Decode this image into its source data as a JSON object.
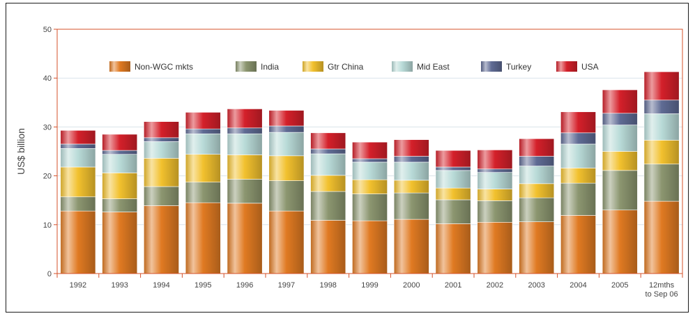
{
  "chart_data": {
    "type": "bar",
    "stacked": true,
    "title": "",
    "xlabel": "",
    "ylabel": "US$ billion",
    "ylim": [
      0,
      50
    ],
    "yticks": [
      0,
      10,
      20,
      30,
      40,
      50
    ],
    "grid": true,
    "legend_position": "top",
    "categories": [
      "1992",
      "1993",
      "1994",
      "1995",
      "1996",
      "1997",
      "1998",
      "1999",
      "2000",
      "2001",
      "2002",
      "2003",
      "2004",
      "2005",
      "12mths to Sep 06"
    ],
    "series": [
      {
        "name": "Non-WGC mkts",
        "color": "#e07a22",
        "values": [
          12.8,
          12.6,
          13.9,
          14.5,
          14.4,
          12.8,
          10.9,
          10.8,
          11.1,
          10.2,
          10.5,
          10.6,
          11.9,
          13.0,
          14.8
        ]
      },
      {
        "name": "India",
        "color": "#8c9670",
        "values": [
          2.9,
          2.7,
          3.9,
          4.2,
          4.9,
          6.2,
          5.9,
          5.5,
          5.4,
          4.9,
          4.4,
          4.9,
          6.6,
          8.1,
          7.6
        ]
      },
      {
        "name": "Gtr China",
        "color": "#f2c12e",
        "values": [
          6.1,
          5.3,
          5.8,
          5.7,
          5.0,
          5.1,
          3.3,
          2.9,
          2.6,
          2.4,
          2.4,
          2.9,
          3.1,
          3.9,
          4.9
        ]
      },
      {
        "name": "Mid East",
        "color": "#b9dbd8",
        "values": [
          3.8,
          3.8,
          3.4,
          4.2,
          4.3,
          4.8,
          4.4,
          3.6,
          3.7,
          3.6,
          3.4,
          3.6,
          4.9,
          5.4,
          5.4
        ]
      },
      {
        "name": "Turkey",
        "color": "#5f6b94",
        "values": [
          0.9,
          0.8,
          0.8,
          1.0,
          1.2,
          1.3,
          1.0,
          0.7,
          1.2,
          0.7,
          0.7,
          2.0,
          2.3,
          2.4,
          2.8
        ]
      },
      {
        "name": "USA",
        "color": "#d4202a",
        "values": [
          2.8,
          3.3,
          3.3,
          3.4,
          3.9,
          3.2,
          3.3,
          3.4,
          3.4,
          3.4,
          3.9,
          3.6,
          4.3,
          4.8,
          5.8
        ]
      }
    ]
  }
}
